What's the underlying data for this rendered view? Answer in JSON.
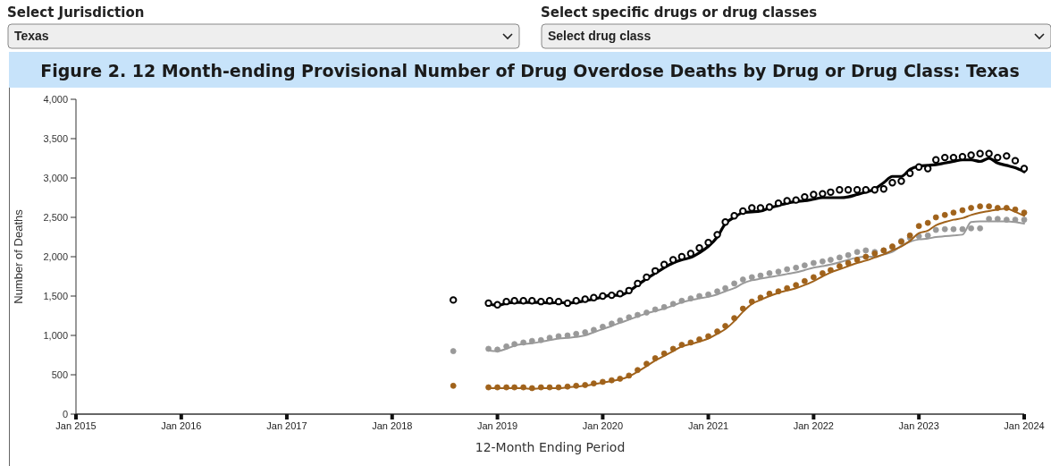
{
  "chart_data": {
    "type": "line",
    "title": "Figure 2. 12 Month-ending Provisional Number of Drug Overdose Deaths by Drug or Drug Class: Texas",
    "xlabel": "12-Month Ending Period",
    "ylabel": "Number of Deaths",
    "annotations": [
      "Select Jurisdiction",
      "Texas",
      "Select specific drugs or drug classes",
      "Select drug class"
    ],
    "x": [
      "2018-08",
      "2018-09",
      "2018-10",
      "2018-11",
      "2018-12",
      "2019-01",
      "2019-02",
      "2019-03",
      "2019-04",
      "2019-05",
      "2019-06",
      "2019-07",
      "2019-08",
      "2019-09",
      "2019-10",
      "2019-11",
      "2019-12",
      "2020-01",
      "2020-02",
      "2020-03",
      "2020-04",
      "2020-05",
      "2020-06",
      "2020-07",
      "2020-08",
      "2020-09",
      "2020-10",
      "2020-11",
      "2020-12",
      "2021-01",
      "2021-02",
      "2021-03",
      "2021-04",
      "2021-05",
      "2021-06",
      "2021-07",
      "2021-08",
      "2021-09",
      "2021-10",
      "2021-11",
      "2021-12",
      "2022-01",
      "2022-02",
      "2022-03",
      "2022-04",
      "2022-05",
      "2022-06",
      "2022-07",
      "2022-08",
      "2022-09",
      "2022-10",
      "2022-11",
      "2022-12",
      "2023-01",
      "2023-02",
      "2023-03",
      "2023-04",
      "2023-05",
      "2023-06",
      "2023-07",
      "2023-08",
      "2023-09",
      "2023-10",
      "2023-11",
      "2023-12",
      "2024-01"
    ],
    "series": [
      {
        "color": "#000000",
        "values": [
          null,
          null,
          null,
          null,
          1400,
          1380,
          1410,
          1420,
          1420,
          1420,
          1420,
          1410,
          1420,
          1410,
          1420,
          1440,
          1460,
          1490,
          1510,
          1510,
          1560,
          1640,
          1720,
          1790,
          1860,
          1920,
          1960,
          1990,
          2050,
          2130,
          2250,
          2420,
          2500,
          2560,
          2570,
          2580,
          2620,
          2650,
          2680,
          2700,
          2710,
          2730,
          2750,
          2750,
          2750,
          2760,
          2790,
          2820,
          2860,
          2940,
          3020,
          3020,
          3110,
          3150,
          3160,
          3170,
          3190,
          3210,
          3230,
          3230,
          3210,
          3250,
          3190,
          3160,
          3130,
          3080
        ]
      },
      {
        "type": "scatter",
        "color": "#000000",
        "marker": "circle",
        "values": [
          1450,
          null,
          null,
          null,
          1410,
          1390,
          1430,
          1440,
          1440,
          1440,
          1430,
          1440,
          1430,
          1410,
          1440,
          1460,
          1480,
          1500,
          1510,
          1530,
          1570,
          1660,
          1740,
          1820,
          1900,
          1960,
          2000,
          2040,
          2110,
          2180,
          2280,
          2440,
          2520,
          2580,
          2620,
          2620,
          2630,
          2680,
          2710,
          2720,
          2760,
          2790,
          2800,
          2820,
          2850,
          2850,
          2850,
          2850,
          2850,
          2860,
          2940,
          2960,
          3060,
          3140,
          3120,
          3230,
          3260,
          3260,
          3270,
          3290,
          3310,
          3310,
          3260,
          3280,
          3220,
          3120
        ]
      },
      {
        "color": "#999999",
        "values": [
          null,
          null,
          null,
          null,
          810,
          800,
          830,
          870,
          890,
          900,
          920,
          940,
          960,
          970,
          980,
          1000,
          1040,
          1080,
          1120,
          1160,
          1200,
          1240,
          1280,
          1310,
          1340,
          1380,
          1420,
          1450,
          1470,
          1490,
          1520,
          1560,
          1600,
          1660,
          1700,
          1720,
          1740,
          1760,
          1780,
          1800,
          1830,
          1860,
          1880,
          1900,
          1930,
          1960,
          1990,
          2000,
          2000,
          2030,
          2060,
          2140,
          2190,
          2220,
          2230,
          2250,
          2260,
          2270,
          2280,
          2440,
          2450,
          2450,
          2450,
          2450,
          2440,
          2420
        ]
      },
      {
        "type": "scatter",
        "color": "#999999",
        "marker": "circle",
        "values": [
          800,
          null,
          null,
          null,
          830,
          820,
          860,
          890,
          910,
          930,
          940,
          970,
          990,
          1000,
          1020,
          1040,
          1070,
          1110,
          1150,
          1190,
          1230,
          1260,
          1290,
          1330,
          1360,
          1400,
          1440,
          1470,
          1500,
          1520,
          1560,
          1600,
          1660,
          1710,
          1740,
          1760,
          1790,
          1810,
          1840,
          1860,
          1890,
          1920,
          1940,
          1960,
          1990,
          2020,
          2060,
          2080,
          2060,
          2080,
          2120,
          2200,
          2240,
          2260,
          2270,
          2340,
          2350,
          2350,
          2350,
          2360,
          2360,
          2480,
          2480,
          2470,
          2470,
          2470
        ]
      },
      {
        "color": "#a0621b",
        "values": [
          null,
          null,
          null,
          null,
          330,
          330,
          330,
          330,
          330,
          320,
          330,
          330,
          330,
          340,
          350,
          360,
          380,
          400,
          420,
          440,
          480,
          540,
          610,
          680,
          740,
          800,
          860,
          890,
          920,
          960,
          1020,
          1080,
          1180,
          1300,
          1400,
          1450,
          1500,
          1540,
          1570,
          1600,
          1640,
          1690,
          1750,
          1800,
          1840,
          1880,
          1920,
          1950,
          1990,
          2030,
          2080,
          2130,
          2200,
          2300,
          2330,
          2400,
          2440,
          2470,
          2490,
          2530,
          2560,
          2580,
          2600,
          2610,
          2570,
          2520
        ]
      },
      {
        "type": "scatter",
        "color": "#a0621b",
        "marker": "circle",
        "values": [
          360,
          null,
          null,
          null,
          340,
          340,
          340,
          340,
          340,
          330,
          340,
          340,
          340,
          350,
          360,
          370,
          390,
          410,
          430,
          450,
          490,
          560,
          640,
          710,
          770,
          830,
          880,
          910,
          950,
          990,
          1050,
          1120,
          1220,
          1340,
          1430,
          1480,
          1530,
          1560,
          1600,
          1640,
          1690,
          1740,
          1790,
          1830,
          1880,
          1920,
          1960,
          2000,
          2040,
          2080,
          2130,
          2190,
          2270,
          2390,
          2430,
          2500,
          2530,
          2560,
          2590,
          2620,
          2640,
          2640,
          2620,
          2620,
          2600,
          2560
        ]
      }
    ],
    "xlim": [
      "2015-01",
      "2024-01"
    ],
    "xticks": [
      {
        "value": "2015-01",
        "label": "Jan 2015"
      },
      {
        "value": "2016-01",
        "label": "Jan 2016"
      },
      {
        "value": "2017-01",
        "label": "Jan 2017"
      },
      {
        "value": "2018-01",
        "label": "Jan 2018"
      },
      {
        "value": "2019-01",
        "label": "Jan 2019"
      },
      {
        "value": "2020-01",
        "label": "Jan 2020"
      },
      {
        "value": "2021-01",
        "label": "Jan 2021"
      },
      {
        "value": "2022-01",
        "label": "Jan 2022"
      },
      {
        "value": "2023-01",
        "label": "Jan 2023"
      },
      {
        "value": "2024-01",
        "label": "Jan 2024"
      }
    ],
    "ylim": [
      0,
      4000
    ],
    "yticks": [
      0,
      500,
      {
        "value": 1000,
        "label": "1,000"
      },
      {
        "value": 1500,
        "label": "1,500"
      },
      {
        "value": 2000,
        "label": "2,000"
      },
      {
        "value": 2500,
        "label": "2,500"
      },
      {
        "value": 3000,
        "label": "3,000"
      },
      {
        "value": 3500,
        "label": "3,500"
      },
      {
        "value": 4000,
        "label": "4,000"
      }
    ],
    "grid": false
  }
}
